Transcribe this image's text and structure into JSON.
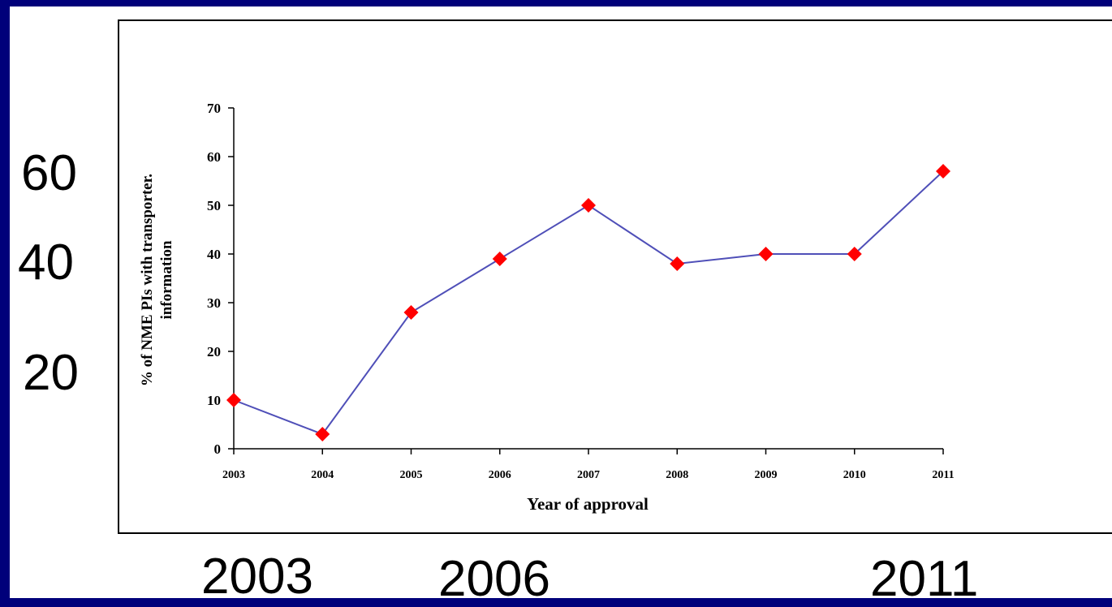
{
  "slide": {
    "overlay_y_labels": [
      "60",
      "40",
      "20"
    ],
    "overlay_x_labels": [
      "2003",
      "2006",
      "2011"
    ]
  },
  "chart_data": {
    "type": "line",
    "title": "",
    "xlabel": "Year of approval",
    "ylabel_lines": [
      "% of NME PIs with transporter.",
      "information"
    ],
    "x": [
      "2003",
      "2004",
      "2005",
      "2006",
      "2007",
      "2008",
      "2009",
      "2010",
      "2011"
    ],
    "series": [
      {
        "values": [
          10,
          3,
          28,
          39,
          50,
          38,
          40,
          40,
          57
        ]
      }
    ],
    "ylim": [
      0,
      70
    ],
    "yticks": [
      0,
      10,
      20,
      30,
      40,
      50,
      60,
      70
    ],
    "grid": false,
    "legend": "none",
    "colors": {
      "line": "#4f4fb8",
      "marker": "#ff0000",
      "background": "#00007a"
    }
  }
}
